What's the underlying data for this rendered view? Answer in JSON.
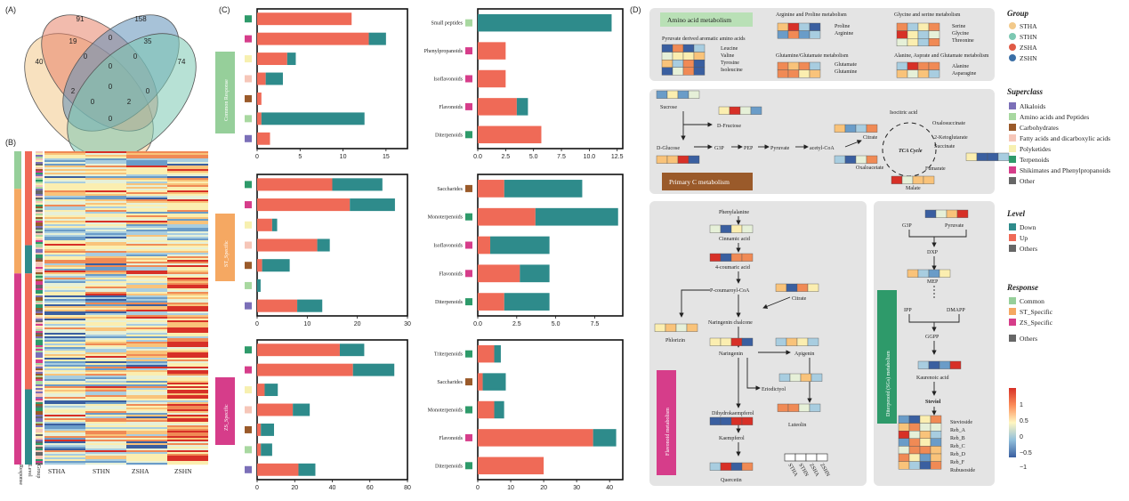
{
  "panels": {
    "a": "(A)",
    "b": "(B)",
    "c": "(C)",
    "d": "(D)"
  },
  "venn": {
    "regions": [
      {
        "id": "r1",
        "value": "40"
      },
      {
        "id": "r2",
        "value": "91"
      },
      {
        "id": "r3",
        "value": "158"
      },
      {
        "id": "r4",
        "value": "74"
      },
      {
        "id": "r5",
        "value": "19"
      },
      {
        "id": "r6",
        "value": "0"
      },
      {
        "id": "r7",
        "value": "35"
      },
      {
        "id": "r8",
        "value": "0"
      },
      {
        "id": "r9",
        "value": "0"
      },
      {
        "id": "r10",
        "value": "0"
      },
      {
        "id": "r11",
        "value": "2"
      },
      {
        "id": "r12",
        "value": "0"
      },
      {
        "id": "r13",
        "value": "2"
      },
      {
        "id": "r14",
        "value": "0"
      },
      {
        "id": "r15",
        "value": "0"
      },
      {
        "id": "r16",
        "value": "0"
      }
    ],
    "colors": [
      "#f2c98a",
      "#e8836a",
      "#5f8fb8",
      "#7cc8b2"
    ]
  },
  "heatmap_b": {
    "columns": [
      "STHA",
      "STHN",
      "ZSHA",
      "ZSHN"
    ],
    "side_labels": [
      "Response",
      "Level",
      "Group"
    ]
  },
  "palette": {
    "up": "#ef6a57",
    "down": "#2e8b8b",
    "common": "#96cf9a",
    "st": "#f5a862",
    "zs": "#d63d8a"
  },
  "chart_data": [
    {
      "type": "bar",
      "id": "c1",
      "group": "Common Response",
      "categories": [
        "Terpenoids",
        "Shikimates and Phenylpropanoids",
        "Polyketides",
        "Fatty acids and dicarboxylic acids",
        "Carbohydrates",
        "Amino acids and Peptides",
        "Alkaloids"
      ],
      "series": [
        {
          "name": "Up",
          "values": [
            11,
            13,
            3.5,
            1,
            0.5,
            0.5,
            1.5
          ]
        },
        {
          "name": "Down",
          "values": [
            0,
            2,
            1,
            2,
            0,
            12,
            0
          ]
        }
      ],
      "xticks": [
        "0",
        "5",
        "10",
        "15"
      ],
      "xlim": [
        0,
        17.5
      ]
    },
    {
      "type": "bar",
      "id": "c2",
      "group": "Common Response",
      "categories": [
        "Small peptides",
        "Phenylpropanoids",
        "Isoflavonoids",
        "Flavonoids",
        "Diterpenoids"
      ],
      "series": [
        {
          "name": "Up",
          "values": [
            0,
            2.5,
            2.5,
            3.5,
            5.7
          ]
        },
        {
          "name": "Down",
          "values": [
            12,
            0,
            0,
            1,
            0
          ]
        }
      ],
      "xticks": [
        "0.0",
        "2.5",
        "5.0",
        "7.5",
        "10.0",
        "12.5"
      ],
      "xlim": [
        0,
        13
      ]
    },
    {
      "type": "bar",
      "id": "c3",
      "group": "ST_Specific",
      "categories": [
        "Terpenoids",
        "Shikimates and Phenylpropanoids",
        "Polyketides",
        "Fatty acids and dicarboxylic acids",
        "Carbohydrates",
        "Amino acids and Peptides",
        "Alkaloids"
      ],
      "series": [
        {
          "name": "Up",
          "values": [
            15,
            18.5,
            3,
            12,
            1,
            0,
            8
          ]
        },
        {
          "name": "Down",
          "values": [
            10,
            9,
            1,
            2.5,
            5.5,
            0.7,
            5
          ]
        }
      ],
      "xticks": [
        "0",
        "10",
        "20",
        "30"
      ],
      "xlim": [
        0,
        30
      ]
    },
    {
      "type": "bar",
      "id": "c4",
      "group": "ST_Specific",
      "categories": [
        "Saccharides",
        "Monoterpenoids",
        "Isoflavonoids",
        "Flavonoids",
        "Diterpenoids"
      ],
      "series": [
        {
          "name": "Up",
          "values": [
            1.7,
            3.7,
            0.8,
            2.7,
            1.7
          ]
        },
        {
          "name": "Down",
          "values": [
            5,
            5.3,
            3.8,
            1.9,
            2.9
          ]
        }
      ],
      "xticks": [
        "0.0",
        "2.5",
        "5.0",
        "7.5"
      ],
      "xlim": [
        0,
        9.3
      ]
    },
    {
      "type": "bar",
      "id": "c5",
      "group": "ZS_Specific",
      "categories": [
        "Terpenoids",
        "Shikimates and Phenylpropanoids",
        "Polyketides",
        "Fatty acids and dicarboxylic acids",
        "Carbohydrates",
        "Amino acids and Peptides",
        "Alkaloids"
      ],
      "series": [
        {
          "name": "Up",
          "values": [
            44,
            51,
            4,
            19,
            2,
            2,
            22
          ]
        },
        {
          "name": "Down",
          "values": [
            13,
            22,
            7,
            9,
            7,
            6,
            9
          ]
        }
      ],
      "xticks": [
        "0",
        "20",
        "40",
        "60",
        "80"
      ],
      "xlim": [
        0,
        80
      ]
    },
    {
      "type": "bar",
      "id": "c6",
      "group": "ZS_Specific",
      "categories": [
        "Triterpenoids",
        "Saccharides",
        "Monoterpenoids",
        "Flavonoids",
        "Diterpenoids"
      ],
      "series": [
        {
          "name": "Up",
          "values": [
            5,
            1.5,
            5,
            35,
            20
          ]
        },
        {
          "name": "Down",
          "values": [
            2,
            7,
            3,
            7,
            0
          ]
        }
      ],
      "xticks": [
        "0",
        "10",
        "20",
        "30",
        "40"
      ],
      "xlim": [
        0,
        44
      ]
    }
  ],
  "pathway": {
    "amino": {
      "title": "Amino acid metabolism",
      "arg_title": "Arginine and Proline metabolism",
      "arg": [
        "Proline",
        "Arginine"
      ],
      "gly_title": "Glycine and serine metabolism",
      "gly": [
        "Serine",
        "Glycine",
        "Threonine"
      ],
      "pyr_title": "Pyruvate derived aromatic amino acids",
      "pyr": [
        "Leucine",
        "Valine",
        "Tyrosine",
        "Isoleucine"
      ],
      "glu_title": "Glutamine/Glutamate metabolism",
      "glu": [
        "Glutamate",
        "Glutamine"
      ],
      "ala_title": "Alanine, Asprate and Glutamate metabolism",
      "ala": [
        "Alanine",
        "Asparagine"
      ]
    },
    "primary": {
      "title": "Primary C metabolism",
      "nodes": [
        "Sucrose",
        "D-Fructose",
        "D-Glucose",
        "G3P",
        "PEP",
        "Pyruvate",
        "acetyl-CoA",
        "Citrate",
        "Isocitric acid",
        "Oxalosuccinate",
        "2-Ketoglutarate",
        "Succinate",
        "Fumarate",
        "Malate",
        "Oxaloacetate"
      ],
      "cycle": "TCA Cycle"
    },
    "flavonoid": {
      "title": "Flavonoid metabolism",
      "nodes": [
        "Phenylalanine",
        "Cinnamic acid",
        "4-coumaric acid",
        "P-coumaroyl-CoA",
        "Citrate",
        "Naringenin chalcone",
        "Phlorizin",
        "Naringenin",
        "Apigenin",
        "Eriodictyol",
        "Dihydrokaempferol",
        "Luteolin",
        "Kaempferol",
        "Quercetin"
      ],
      "cols": [
        "STHA",
        "STHN",
        "ZSHA",
        "ZSHN"
      ]
    },
    "diterpenoid": {
      "title": "Diterpenoid (SGs) metabolism",
      "nodes": [
        "G3P",
        "Pyruvate",
        "DXP",
        "MEP",
        "IPP",
        "DMAPP",
        "GGPP",
        "Kaurenoic acid",
        "Steviol"
      ],
      "sgs": [
        "Stevioside",
        "Reb_A",
        "Reb_B",
        "Reb_C",
        "Reb_D",
        "Reb_F",
        "Rubusoside"
      ]
    }
  },
  "legend": {
    "group_title": "Group",
    "group": [
      {
        "label": "STHA",
        "color": "#f2c98a"
      },
      {
        "label": "STHN",
        "color": "#7cc8b2"
      },
      {
        "label": "ZSHA",
        "color": "#e05a45"
      },
      {
        "label": "ZSHN",
        "color": "#3b6fa6"
      }
    ],
    "superclass_title": "Superclass",
    "superclass": [
      {
        "label": "Alkaloids",
        "color": "#7b6fb8"
      },
      {
        "label": "Amino acids and Peptides",
        "color": "#a8d8a0"
      },
      {
        "label": "Carbohydrates",
        "color": "#9a5a2a"
      },
      {
        "label": "Fatty acids and dicarboxylic acids",
        "color": "#f6c6b8"
      },
      {
        "label": "Polyketides",
        "color": "#f7f0b0"
      },
      {
        "label": "Terpenoids",
        "color": "#2e9a6a"
      },
      {
        "label": "Shikimates and Phenylpropanoids",
        "color": "#d63d8a"
      },
      {
        "label": "Other",
        "color": "#666666"
      }
    ],
    "level_title": "Level",
    "level": [
      {
        "label": "Down",
        "color": "#2e8b8b"
      },
      {
        "label": "Up",
        "color": "#ef6a57"
      },
      {
        "label": "Others",
        "color": "#666666"
      }
    ],
    "response_title": "Response",
    "response": [
      {
        "label": "Common",
        "color": "#96cf9a"
      },
      {
        "label": "ST_Specific",
        "color": "#f5a862"
      },
      {
        "label": "ZS_Specific",
        "color": "#d63d8a"
      },
      {
        "label": "Others",
        "color": "#666666"
      }
    ],
    "scale": [
      "1",
      "0.5",
      "0",
      "−0.5",
      "−1"
    ]
  }
}
